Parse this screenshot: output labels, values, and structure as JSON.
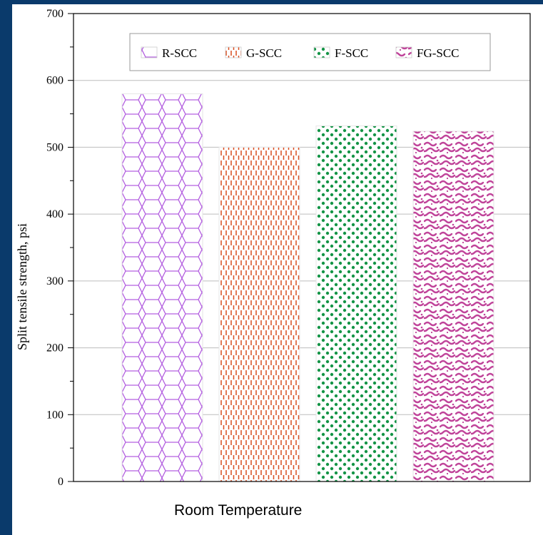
{
  "chart_data": {
    "type": "bar",
    "title": "",
    "xlabel": "Room Temperature",
    "ylabel": "Split tensile strength, psi",
    "ylim": [
      0,
      700
    ],
    "yticks": [
      "0",
      "100",
      "200",
      "300",
      "400",
      "500",
      "600",
      "700"
    ],
    "grid": true,
    "legend_position": "top",
    "categories": [
      "Room Temperature"
    ],
    "series": [
      {
        "name": "R-SCC",
        "values": [
          580
        ],
        "color": "#b35fe0",
        "pattern": "hexagon-lattice"
      },
      {
        "name": "G-SCC",
        "values": [
          500
        ],
        "color": "#d94c1e",
        "pattern": "vertical-dashes"
      },
      {
        "name": "F-SCC",
        "values": [
          532
        ],
        "color": "#149446",
        "pattern": "dots"
      },
      {
        "name": "FG-SCC",
        "values": [
          524
        ],
        "color": "#c0449a",
        "pattern": "squiggle"
      }
    ]
  }
}
